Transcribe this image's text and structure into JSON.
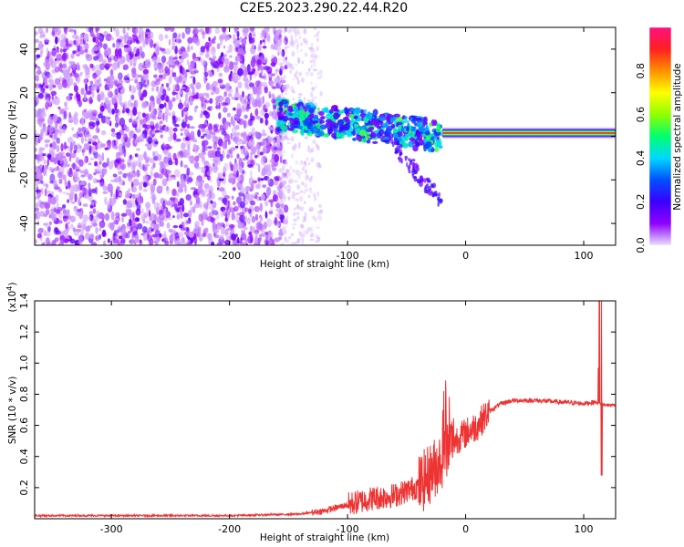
{
  "title": "C2E5.2023.290.22.44.R20",
  "colors": {
    "snr_line": "#ee3333",
    "spectrogram_low": "#d8c8ff",
    "spectrogram_mid": "#7a1ef0",
    "colormap": [
      "#e8e0ff",
      "#9000ff",
      "#3a00ff",
      "#0050ff",
      "#00d8ff",
      "#00ff70",
      "#90ff00",
      "#ffff00",
      "#ff9000",
      "#ff2020",
      "#ff1080"
    ]
  },
  "chart_data": [
    {
      "type": "heatmap",
      "title": "C2E5.2023.290.22.44.R20",
      "xlabel": "Height of straight line (km)",
      "ylabel": "Frequency (Hz)",
      "xlim": [
        -365,
        127
      ],
      "ylim": [
        -50,
        50
      ],
      "xticks": [
        -300,
        -200,
        -100,
        0,
        100
      ],
      "xtick_labels": [
        "-300",
        "-200",
        "-100",
        "0",
        "100"
      ],
      "yticks": [
        -40,
        -20,
        0,
        20,
        40
      ],
      "ytick_labels": [
        "-40",
        "-20",
        "0",
        "20",
        "40"
      ],
      "colorbar": {
        "label": "Normalized spectral amplitude",
        "range": [
          0,
          1
        ],
        "ticks": [
          0.0,
          0.2,
          0.4,
          0.6,
          0.8
        ],
        "tick_labels": [
          "0.0",
          "0.2",
          "0.4",
          "0.6",
          "0.8"
        ]
      },
      "features": [
        {
          "x_range": [
            -365,
            -160
          ],
          "freq_range": [
            -50,
            50
          ],
          "amplitude_range": [
            0.0,
            0.15
          ]
        },
        {
          "x_range": [
            -160,
            -125
          ],
          "freq_range": [
            -50,
            50
          ],
          "amplitude_range": [
            0.0,
            0.05
          ]
        },
        {
          "x_range": [
            -160,
            -20
          ],
          "freq_start": 10,
          "freq_end": 0,
          "amplitude_range": [
            0.15,
            0.5
          ]
        },
        {
          "x_range": [
            -20,
            127
          ],
          "freq_center": 1.5,
          "amplitude_range": [
            0.4,
            0.95
          ]
        }
      ]
    },
    {
      "type": "line",
      "xlabel": "Height of straight line (km)",
      "ylabel": "SNR (10 * v/v)",
      "y_scale_label": "(x10^4)",
      "xlim": [
        -365,
        127
      ],
      "ylim": [
        0,
        1.4
      ],
      "xticks": [
        -300,
        -200,
        -100,
        0,
        100
      ],
      "xtick_labels": [
        "-300",
        "-200",
        "-100",
        "0",
        "100"
      ],
      "yticks": [
        0.2,
        0.4,
        0.6,
        0.8,
        1.0,
        1.2,
        1.4
      ],
      "ytick_labels": [
        "0.2",
        "0.4",
        "0.6",
        "0.8",
        "1.0",
        "1.2",
        "1.4"
      ],
      "series": [
        {
          "x": [
            -365,
            -300,
            -200,
            -140,
            -120,
            -100,
            -80,
            -60,
            -40,
            -30,
            -20,
            -15,
            -10,
            0,
            10,
            20,
            30,
            40,
            60,
            80,
            100,
            110,
            113,
            115,
            120,
            127
          ],
          "y": [
            0.02,
            0.02,
            0.02,
            0.03,
            0.05,
            0.09,
            0.13,
            0.15,
            0.21,
            0.29,
            0.39,
            0.45,
            0.5,
            0.55,
            0.6,
            0.69,
            0.74,
            0.76,
            0.76,
            0.75,
            0.74,
            0.75,
            0.74,
            0.74,
            0.73,
            0.73
          ]
        }
      ]
    }
  ]
}
